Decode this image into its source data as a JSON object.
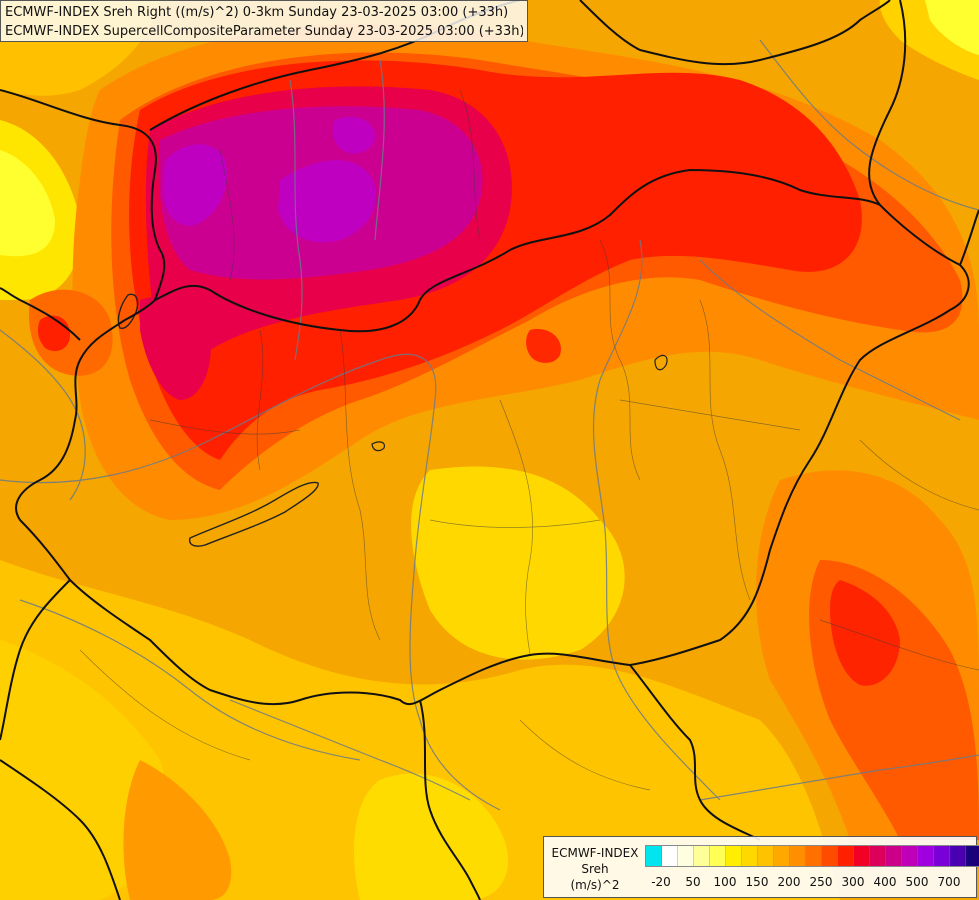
{
  "title": {
    "line1": "ECMWF-INDEX Sreh Right ((m/s)^2) 0-3km Sunday 23-03-2025 03:00 (+33h)",
    "line2": "ECMWF-INDEX SupercellCompositeParameter Sunday 23-03-2025 03:00 (+33h)"
  },
  "legend": {
    "title_line1": "ECMWF-INDEX",
    "title_line2": "Sreh",
    "title_line3": "(m/s)^2",
    "colors": [
      "#00e5ee",
      "#ffffff",
      "#ffffe0",
      "#ffff9a",
      "#ffff55",
      "#ffee00",
      "#ffd800",
      "#ffc200",
      "#ffa800",
      "#ff8f00",
      "#ff7000",
      "#ff4b00",
      "#ff2000",
      "#f20026",
      "#dd005a",
      "#cc0088",
      "#c000b8",
      "#a000e0",
      "#7a00d8",
      "#4a00b0",
      "#1a007a"
    ],
    "labels": [
      "-20",
      "50",
      "100",
      "150",
      "200",
      "250",
      "300",
      "400",
      "500",
      "700"
    ]
  },
  "map": {
    "fill_colors": {
      "background": "#f5a600",
      "yellow": "#ffe000",
      "bright_yellow": "#ffff30",
      "light_orange": "#ffb400",
      "orange": "#ff8800",
      "dark_orange": "#ff5a00",
      "red": "#ff2000",
      "crimson": "#e8004a",
      "magenta": "#cc0090",
      "purple": "#c000c0"
    },
    "border_color": "#111111",
    "river_color": "#6a7a8a"
  }
}
